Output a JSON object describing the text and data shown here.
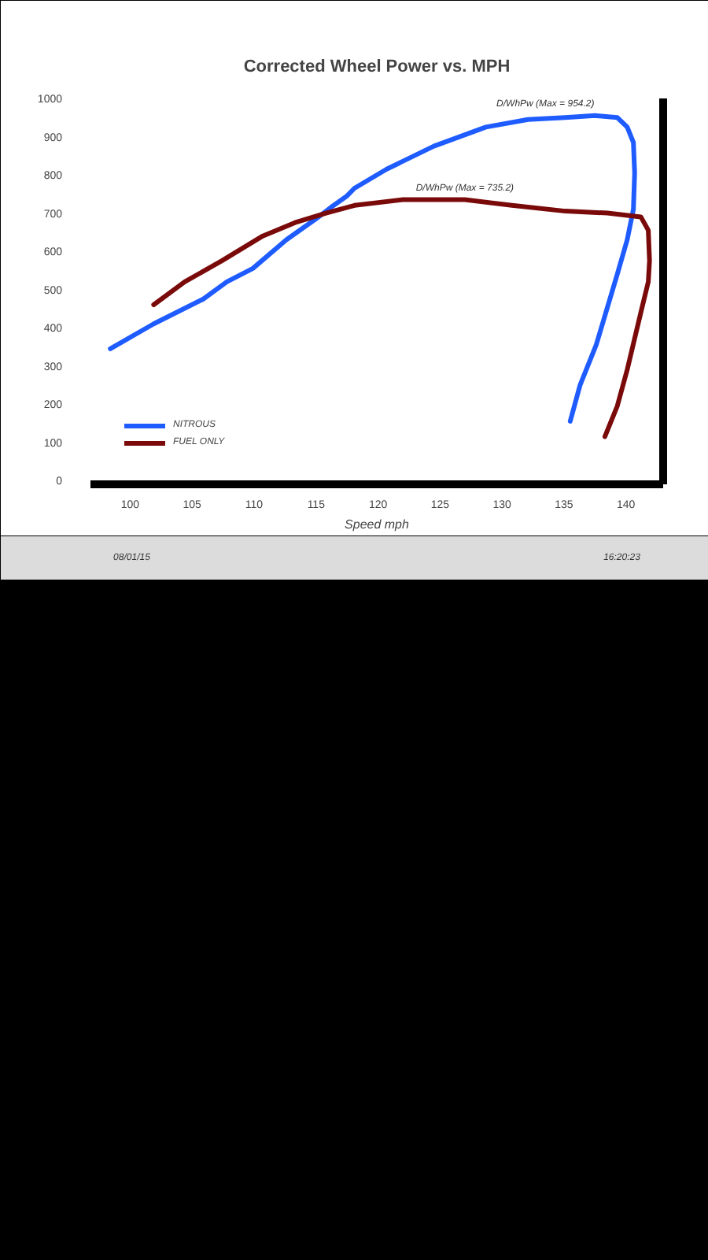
{
  "chart_data": {
    "type": "line",
    "title": "Corrected Wheel Power vs. MPH",
    "xlabel": "Speed mph",
    "series": [
      {
        "name": "NITROUS",
        "color": "#1f5cff",
        "x": [
          98.4,
          101.9,
          105.9,
          107.8,
          109.9,
          112.6,
          115.0,
          116.2,
          117.5,
          118.1,
          120.7,
          124.5,
          128.7,
          132.1,
          135.1,
          137.5,
          139.3,
          140.1,
          140.6,
          140.7,
          140.6,
          140.1,
          139.3,
          137.6,
          136.3,
          135.5
        ],
        "values": [
          345,
          410,
          475,
          520,
          555,
          630,
          685,
          715,
          745,
          765,
          815,
          875,
          925,
          945,
          950,
          955,
          950,
          925,
          885,
          805,
          710,
          630,
          540,
          355,
          250,
          155
        ]
      },
      {
        "name": "FUEL ONLY",
        "color": "#7a0a0a",
        "x": [
          101.9,
          104.4,
          107.4,
          110.7,
          113.3,
          115.8,
          118.1,
          122.0,
          127.0,
          130.8,
          135.1,
          138.5,
          141.2,
          141.8,
          141.9,
          141.8,
          141.2,
          140.1,
          139.3,
          138.3
        ],
        "values": [
          460,
          520,
          575,
          640,
          675,
          700,
          720,
          735,
          735,
          720,
          705,
          700,
          690,
          655,
          575,
          520,
          440,
          290,
          195,
          115
        ]
      }
    ],
    "xlim": [
      96.8,
      143
    ],
    "ylim": [
      -10,
      1000
    ],
    "xticks": [
      100,
      105,
      110,
      115,
      120,
      125,
      130,
      135,
      140
    ],
    "yticks": [
      0,
      100,
      200,
      300,
      400,
      500,
      600,
      700,
      800,
      900,
      1000
    ],
    "grid": false,
    "legend": "bottom left",
    "line_style": "solid",
    "annotations": [
      {
        "text": "D/WhPw (Max = 954.2)",
        "x": 133.5,
        "y": 955
      },
      {
        "text": "D/WhPw (Max = 735.2)",
        "x": 127.0,
        "y": 735
      },
      "08/01/15",
      "16:20:23"
    ]
  }
}
